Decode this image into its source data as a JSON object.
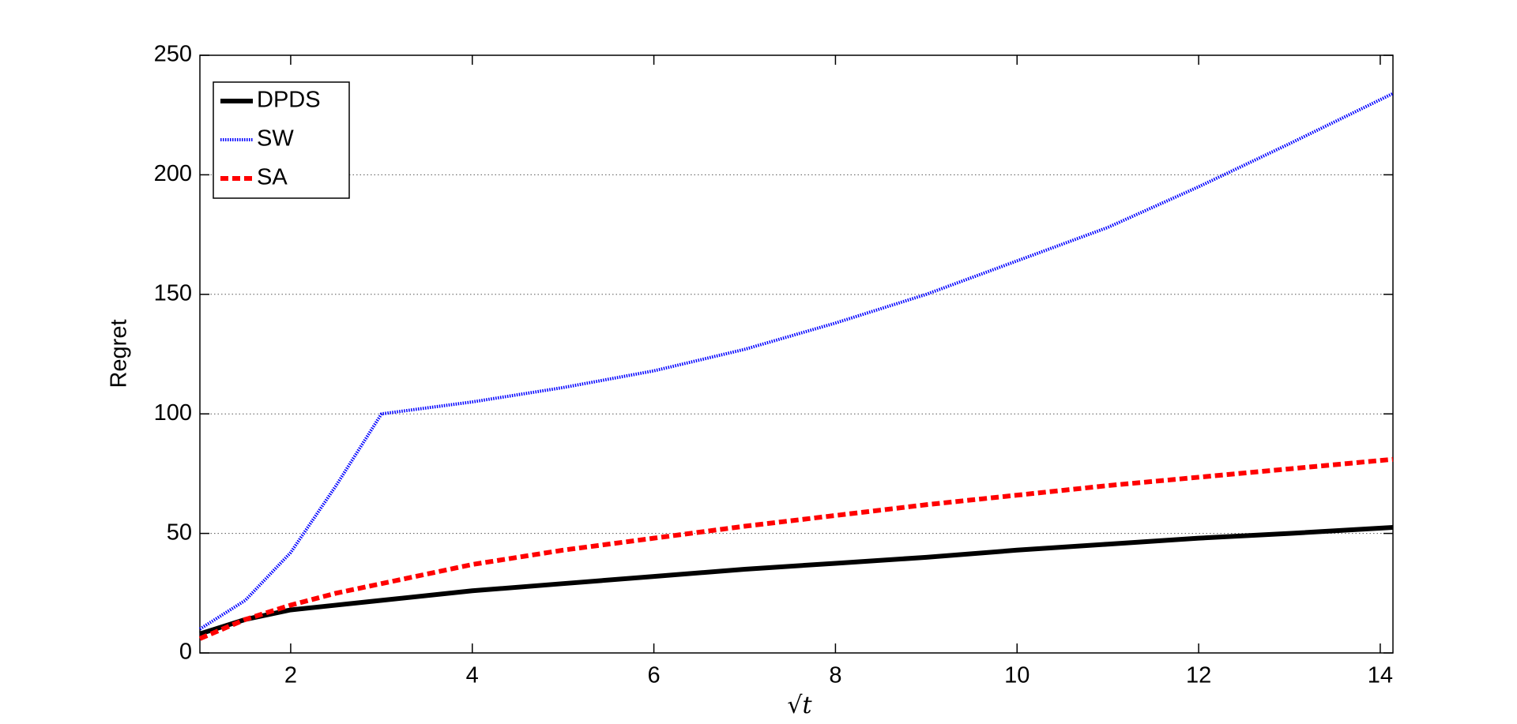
{
  "chart_data": {
    "type": "line",
    "x_label": "√t",
    "y_label": "Regret",
    "x": [
      1,
      1.5,
      2,
      2.5,
      3,
      4,
      5,
      6,
      7,
      8,
      9,
      10,
      11,
      12,
      13,
      14.14
    ],
    "series": [
      {
        "name": "DPDS",
        "color": "#000000",
        "style": "solid",
        "values": [
          8,
          14,
          18,
          20,
          22,
          26,
          29,
          32,
          35,
          37.5,
          40,
          43,
          45.5,
          48,
          50,
          52.5
        ]
      },
      {
        "name": "SW",
        "color": "#0000ff",
        "style": "dotted",
        "values": [
          10,
          22,
          42,
          70,
          100,
          105,
          111,
          118,
          127,
          138,
          150,
          164,
          178,
          195,
          213,
          234
        ]
      },
      {
        "name": "SA",
        "color": "#ff0000",
        "style": "dashed",
        "values": [
          6,
          14,
          20,
          25,
          29,
          37,
          43,
          48,
          53,
          57.5,
          62,
          66,
          70,
          73.5,
          77,
          81
        ]
      }
    ],
    "xlim": [
      1,
      14.14
    ],
    "xticks": [
      2,
      4,
      6,
      8,
      10,
      12,
      14
    ],
    "ylim": [
      0,
      250
    ],
    "yticks": [
      0,
      50,
      100,
      150,
      200,
      250
    ],
    "grid": true,
    "legend": "upper-left"
  }
}
